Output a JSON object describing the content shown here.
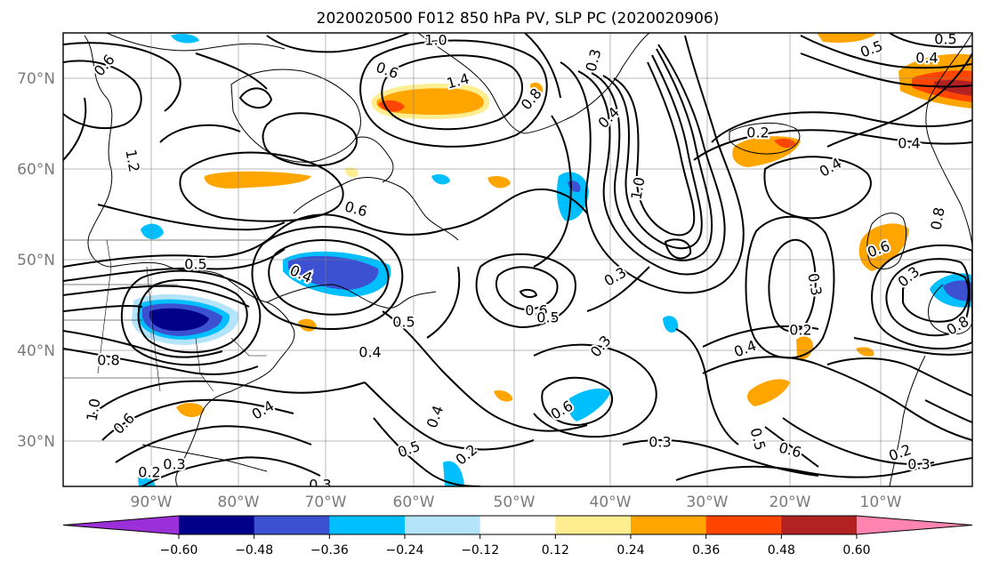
{
  "title": "2020020500 F012 850 hPa PV, SLP PC (2020020906)",
  "lat_labels": [
    "70°N",
    "60°N",
    "50°N",
    "40°N",
    "30°N"
  ],
  "lon_labels": [
    "90°W",
    "80°W",
    "70°W",
    "60°W",
    "50°W",
    "40°W",
    "30°W",
    "20°W",
    "10°W"
  ],
  "colorbar": {
    "colors": [
      "#9b30d9",
      "#00008b",
      "#3c50d2",
      "#00bfff",
      "#b4e4fa",
      "#ffffff",
      "#ffee90",
      "#ffa500",
      "#ff4500",
      "#b22222",
      "#ff85b0"
    ],
    "tick_labels": [
      "−0.60",
      "−0.48",
      "−0.36",
      "−0.24",
      "−0.12",
      "0.12",
      "0.24",
      "0.36",
      "0.48",
      "0.60"
    ]
  },
  "contour_labels": [
    {
      "text": "1.0"
    },
    {
      "text": "0.6"
    },
    {
      "text": "1.4"
    },
    {
      "text": "0.8"
    },
    {
      "text": "0.3"
    },
    {
      "text": "0.4"
    },
    {
      "text": "1.0"
    },
    {
      "text": "0.5"
    },
    {
      "text": "0.4"
    },
    {
      "text": "0.5"
    },
    {
      "text": "0.4"
    },
    {
      "text": "1.2"
    },
    {
      "text": "0.6"
    },
    {
      "text": "0.5"
    },
    {
      "text": "0.4"
    },
    {
      "text": "0.5"
    },
    {
      "text": "0.6"
    },
    {
      "text": "0.5"
    },
    {
      "text": "0.3"
    },
    {
      "text": "0.3"
    },
    {
      "text": "0.4"
    },
    {
      "text": "0.6"
    },
    {
      "text": "0.3"
    },
    {
      "text": "0.2"
    },
    {
      "text": "0.4"
    },
    {
      "text": "0.8"
    },
    {
      "text": "0.6"
    },
    {
      "text": "0.5"
    },
    {
      "text": "0.2"
    },
    {
      "text": "0.4"
    },
    {
      "text": "0.2"
    },
    {
      "text": "0.3"
    },
    {
      "text": "0.6"
    },
    {
      "text": "0.3"
    },
    {
      "text": "0.4"
    },
    {
      "text": "0.5"
    },
    {
      "text": "0.6"
    },
    {
      "text": "0.2"
    },
    {
      "text": "0.3"
    },
    {
      "text": "0.8"
    },
    {
      "text": "1.0"
    },
    {
      "text": "0.6"
    },
    {
      "text": "0.2"
    },
    {
      "text": "0.3"
    },
    {
      "text": "0.3"
    },
    {
      "text": "0.4"
    },
    {
      "text": "0.8"
    }
  ]
}
